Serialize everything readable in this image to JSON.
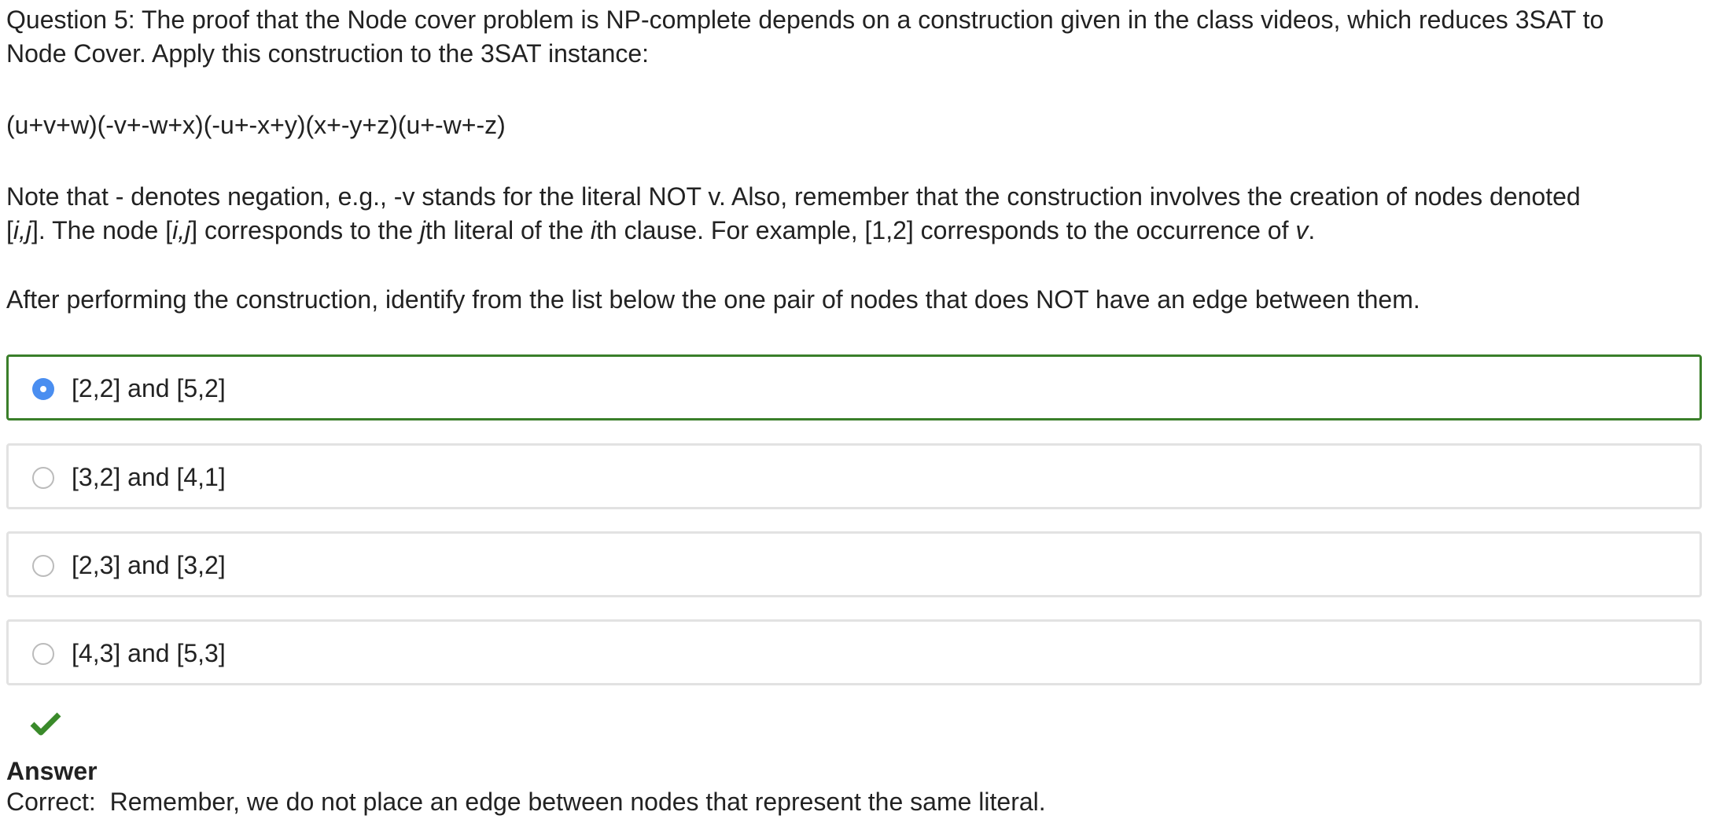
{
  "question": {
    "lines": [
      "Question 5: The proof that the Node cover problem is NP-complete depends on a construction given in the class videos, which reduces 3SAT to",
      "Node Cover. Apply this construction to the 3SAT instance:"
    ]
  },
  "formula": "(u+v+w)(-v+-w+x)(-u+-x+y)(x+-y+z)(u+-w+-z)",
  "note": {
    "lines": [
      [
        {
          "text": "Note that - denotes negation, e.g., -v stands for the literal NOT v. Also, remember that the construction involves the creation of nodes denoted"
        }
      ],
      [
        {
          "text": "["
        },
        {
          "text": "i,j",
          "italic": true
        },
        {
          "text": "]. The node ["
        },
        {
          "text": "i,j",
          "italic": true
        },
        {
          "text": "] corresponds to the "
        },
        {
          "text": "j",
          "italic": true
        },
        {
          "text": "th literal of the "
        },
        {
          "text": "i",
          "italic": true
        },
        {
          "text": "th clause. For example, [1,2] corresponds to the occurrence of "
        },
        {
          "text": "v",
          "italic": true
        },
        {
          "text": "."
        }
      ]
    ]
  },
  "instruction": "After performing the construction, identify from the list below the one pair of nodes that does NOT have an edge between them.",
  "options": [
    {
      "label": "[2,2] and [5,2]",
      "selected": true
    },
    {
      "label": "[3,2] and [4,1]",
      "selected": false
    },
    {
      "label": "[2,3] and [3,2]",
      "selected": false
    },
    {
      "label": "[4,3] and [5,3]",
      "selected": false
    }
  ],
  "feedback": {
    "heading": "Answer",
    "text": "Correct:  Remember, we do not place an edge between nodes that represent the same literal."
  }
}
